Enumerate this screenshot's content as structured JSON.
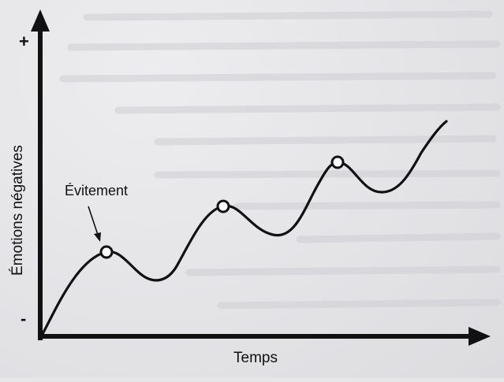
{
  "axes": {
    "y_title": "Émotions négatives",
    "x_title": "Temps",
    "y_plus": "+",
    "y_minus": "-"
  },
  "annotation": {
    "label": "Évitement"
  },
  "curve": {
    "description_points": [
      "rise",
      "avoidance-1",
      "dip",
      "avoidance-2",
      "dip",
      "avoidance-3",
      "dip",
      "rise"
    ]
  }
}
